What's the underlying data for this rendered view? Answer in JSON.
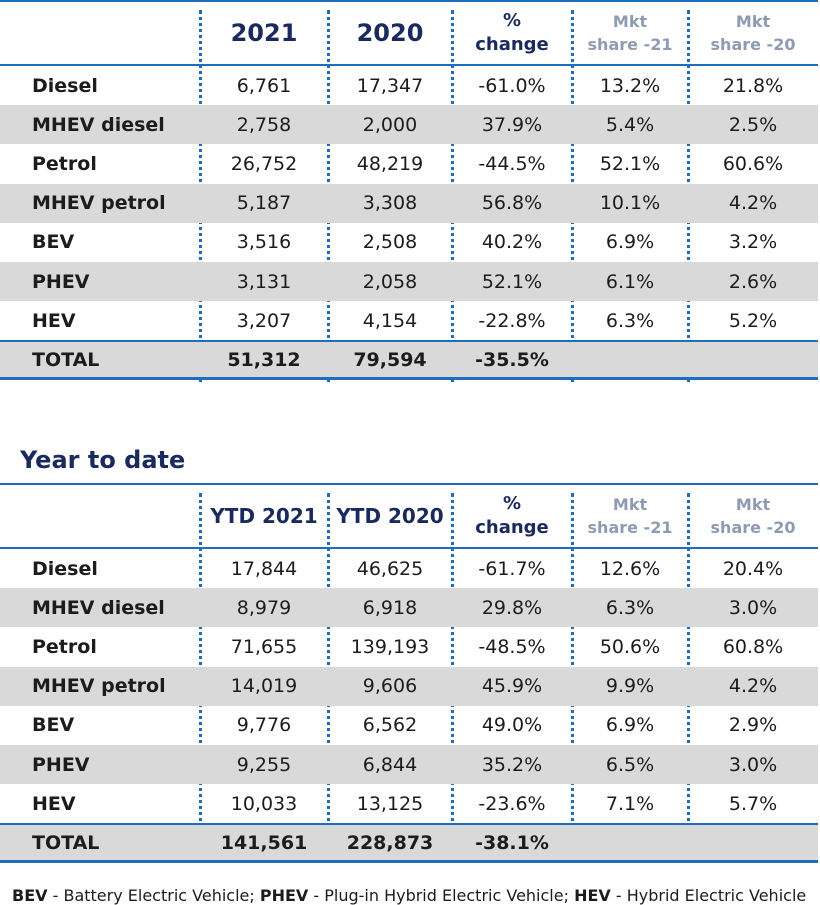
{
  "monthly": {
    "headers": {
      "col1": "2021",
      "col2": "2020",
      "pct_top": "%",
      "pct_bottom": "change",
      "mkt21_top": "Mkt",
      "mkt21_bottom": "share -21",
      "mkt20_top": "Mkt",
      "mkt20_bottom": "share -20"
    },
    "rows": [
      {
        "label": "Diesel",
        "v2021": "6,761",
        "v2020": "17,347",
        "change": "-61.0%",
        "share21": "13.2%",
        "share20": "21.8%"
      },
      {
        "label": "MHEV diesel",
        "v2021": "2,758",
        "v2020": "2,000",
        "change": "37.9%",
        "share21": "5.4%",
        "share20": "2.5%"
      },
      {
        "label": "Petrol",
        "v2021": "26,752",
        "v2020": "48,219",
        "change": "-44.5%",
        "share21": "52.1%",
        "share20": "60.6%"
      },
      {
        "label": "MHEV petrol",
        "v2021": "5,187",
        "v2020": "3,308",
        "change": "56.8%",
        "share21": "10.1%",
        "share20": "4.2%"
      },
      {
        "label": "BEV",
        "v2021": "3,516",
        "v2020": "2,508",
        "change": "40.2%",
        "share21": "6.9%",
        "share20": "3.2%"
      },
      {
        "label": "PHEV",
        "v2021": "3,131",
        "v2020": "2,058",
        "change": "52.1%",
        "share21": "6.1%",
        "share20": "2.6%"
      },
      {
        "label": "HEV",
        "v2021": "3,207",
        "v2020": "4,154",
        "change": "-22.8%",
        "share21": "6.3%",
        "share20": "5.2%"
      }
    ],
    "total": {
      "label": "TOTAL",
      "v2021": "51,312",
      "v2020": "79,594",
      "change": "-35.5%"
    }
  },
  "ytd": {
    "title": "Year to date",
    "headers": {
      "col1": "YTD 2021",
      "col2": "YTD 2020",
      "pct_top": "%",
      "pct_bottom": "change",
      "mkt21_top": "Mkt",
      "mkt21_bottom": "share -21",
      "mkt20_top": "Mkt",
      "mkt20_bottom": "share -20"
    },
    "rows": [
      {
        "label": "Diesel",
        "v2021": "17,844",
        "v2020": "46,625",
        "change": "-61.7%",
        "share21": "12.6%",
        "share20": "20.4%"
      },
      {
        "label": "MHEV diesel",
        "v2021": "8,979",
        "v2020": "6,918",
        "change": "29.8%",
        "share21": "6.3%",
        "share20": "3.0%"
      },
      {
        "label": "Petrol",
        "v2021": "71,655",
        "v2020": "139,193",
        "change": "-48.5%",
        "share21": "50.6%",
        "share20": "60.8%"
      },
      {
        "label": "MHEV petrol",
        "v2021": "14,019",
        "v2020": "9,606",
        "change": "45.9%",
        "share21": "9.9%",
        "share20": "4.2%"
      },
      {
        "label": "BEV",
        "v2021": "9,776",
        "v2020": "6,562",
        "change": "49.0%",
        "share21": "6.9%",
        "share20": "2.9%"
      },
      {
        "label": "PHEV",
        "v2021": "9,255",
        "v2020": "6,844",
        "change": "35.2%",
        "share21": "6.5%",
        "share20": "3.0%"
      },
      {
        "label": "HEV",
        "v2021": "10,033",
        "v2020": "13,125",
        "change": "-23.6%",
        "share21": "7.1%",
        "share20": "5.7%"
      }
    ],
    "total": {
      "label": "TOTAL",
      "v2021": "141,561",
      "v2020": "228,873",
      "change": "-38.1%"
    }
  },
  "footnote": {
    "bev_abbr": "BEV",
    "bev_text": " - Battery Electric Vehicle; ",
    "phev_abbr": "PHEV",
    "phev_text": " - Plug-in Hybrid Electric Vehicle; ",
    "hev_abbr": "HEV",
    "hev_text": " - Hybrid Electric Vehicle"
  }
}
